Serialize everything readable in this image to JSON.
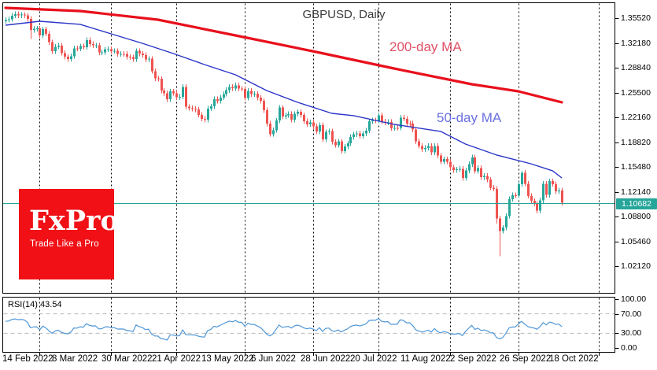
{
  "header": {
    "title": "GBPUSD, Daily"
  },
  "logo": {
    "brand": "FxPro",
    "tagline": "Trade Like a Pro",
    "bg_color": "#f01016"
  },
  "colors": {
    "candle_up": "#26a69a",
    "candle_down": "#ef5350",
    "ma200_line": "#e8101c",
    "ma200_label": "#e05065",
    "ma50_line": "#2b35c9",
    "ma50_label": "#6a6fe0",
    "current_price": "#26a69a",
    "rsi_line": "#4f97d7",
    "grid": "#000000",
    "rsi_level": "#bbbbbb",
    "border": "#000000"
  },
  "chart_data": {
    "type": "candlestick",
    "title": "GBPUSD, Daily",
    "legend": [
      "200-day MA",
      "50-day MA",
      "RSI(14)"
    ],
    "y_axis": {
      "labels": [
        "1.35520",
        "1.32180",
        "1.28840",
        "1.25500",
        "1.22160",
        "1.18820",
        "1.15480",
        "1.12140",
        "1.08800",
        "1.05460",
        "1.02120"
      ]
    },
    "x_axis": {
      "ticks": [
        {
          "idx": 0,
          "label": "14 Feb 2022"
        },
        {
          "idx": 16,
          "label": "8 Mar 2022"
        },
        {
          "idx": 32,
          "label": "30 Mar 2022"
        },
        {
          "idx": 48,
          "label": "21 Apr 2022"
        },
        {
          "idx": 64,
          "label": "13 May 2022"
        },
        {
          "idx": 80,
          "label": "6 Jun 2022"
        },
        {
          "idx": 96,
          "label": "28 Jun 2022"
        },
        {
          "idx": 112,
          "label": "20 Jul 2022"
        },
        {
          "idx": 128,
          "label": "11 Aug 2022"
        },
        {
          "idx": 144,
          "label": "2 Sep 2022"
        },
        {
          "idx": 160,
          "label": "26 Sep 2022"
        },
        {
          "idx": 176,
          "label": "18 Oct 2022"
        }
      ],
      "month_gridline_idx": [
        11,
        34,
        55,
        77,
        99,
        120,
        143,
        165,
        191
      ]
    },
    "bars": {
      "open_first": 1.3515,
      "default_wick": 0.0035,
      "closes": [
        1.353,
        1.3541,
        1.3588,
        1.361,
        1.3592,
        1.3602,
        1.359,
        1.3545,
        1.3395,
        1.3412,
        1.3415,
        1.3322,
        1.3405,
        1.3345,
        1.323,
        1.3108,
        1.317,
        1.3185,
        1.3085,
        1.3034,
        1.3003,
        1.3043,
        1.3149,
        1.3143,
        1.3178,
        1.3164,
        1.3259,
        1.3205,
        1.3187,
        1.3188,
        1.3091,
        1.3095,
        1.3134,
        1.3138,
        1.3111,
        1.3113,
        1.3073,
        1.3075,
        1.3073,
        1.3034,
        1.3029,
        1.3003,
        1.3114,
        1.3076,
        1.3057,
        1.2999,
        1.3007,
        1.284,
        1.2742,
        1.2738,
        1.2579,
        1.2543,
        1.2462,
        1.2567,
        1.2545,
        1.249,
        1.2497,
        1.2627,
        1.236,
        1.2343,
        1.2335,
        1.2324,
        1.2253,
        1.2199,
        1.2185,
        1.2337,
        1.2365,
        1.2465,
        1.2439,
        1.2485,
        1.2533,
        1.2585,
        1.2629,
        1.2609,
        1.265,
        1.2604,
        1.2602,
        1.2481,
        1.2574,
        1.2532,
        1.2535,
        1.2483,
        1.2441,
        1.2315,
        1.2134,
        1.1993,
        1.2045,
        1.2175,
        1.235,
        1.2229,
        1.2248,
        1.2262,
        1.2186,
        1.2266,
        1.2292,
        1.225,
        1.2168,
        1.2126,
        1.215,
        1.2097,
        1.2027,
        1.2115,
        1.1921,
        1.2021,
        1.2033,
        1.1889,
        1.1844,
        1.1894,
        1.1766,
        1.1826,
        1.1868,
        1.1954,
        1.199,
        1.2002,
        1.1967,
        1.2,
        1.204,
        1.2164,
        1.218,
        1.2174,
        1.2248,
        1.2163,
        1.2147,
        1.2158,
        1.2073,
        1.2078,
        1.2077,
        1.2216,
        1.2199,
        1.2135,
        1.2134,
        1.2054,
        1.1896,
        1.1833,
        1.1788,
        1.1808,
        1.1832,
        1.1745,
        1.1834,
        1.1704,
        1.1621,
        1.1655,
        1.1622,
        1.1544,
        1.1508,
        1.1518,
        1.1525,
        1.1402,
        1.1503,
        1.1588,
        1.1681,
        1.1495,
        1.1537,
        1.1413,
        1.143,
        1.138,
        1.1271,
        1.1255,
        1.0857,
        1.0688,
        1.0734,
        1.0889,
        1.1118,
        1.117,
        1.1166,
        1.1318,
        1.1473,
        1.1324,
        1.1161,
        1.1093,
        1.1056,
        1.0962,
        1.1101,
        1.1325,
        1.1174,
        1.1359,
        1.1319,
        1.1222,
        1.1234,
        1.10682
      ],
      "wick_overrides": {
        "8": {
          "l": 1.3273
        },
        "158": {
          "l": 1.079
        },
        "159": {
          "l": 1.035
        },
        "166": {
          "h": 1.1495
        }
      }
    },
    "ma200": {
      "label": "200-day MA",
      "points": [
        [
          0,
          1.3693
        ],
        [
          24,
          1.3651
        ],
        [
          49,
          1.3534
        ],
        [
          74,
          1.3322
        ],
        [
          100,
          1.3099
        ],
        [
          125,
          1.2877
        ],
        [
          150,
          1.2665
        ],
        [
          165,
          1.2569
        ],
        [
          179,
          1.2421
        ]
      ]
    },
    "ma50": {
      "label": "50-day MA",
      "points": [
        [
          0,
          1.346
        ],
        [
          11,
          1.3513
        ],
        [
          24,
          1.3471
        ],
        [
          34,
          1.3343
        ],
        [
          44,
          1.3216
        ],
        [
          54,
          1.3078
        ],
        [
          64,
          1.293
        ],
        [
          74,
          1.2792
        ],
        [
          84,
          1.258
        ],
        [
          94,
          1.2421
        ],
        [
          105,
          1.2272
        ],
        [
          112,
          1.2241
        ],
        [
          125,
          1.2124
        ],
        [
          140,
          1.2029
        ],
        [
          148,
          1.1859
        ],
        [
          158,
          1.1711
        ],
        [
          169,
          1.1594
        ],
        [
          176,
          1.1499
        ],
        [
          179,
          1.1403
        ]
      ]
    },
    "current_price": {
      "display": "1.10682",
      "value": 1.10682
    },
    "rsi": {
      "label": "RSI(14) 43.54",
      "period": 14,
      "current_value": 43.54,
      "seed_gain": 0.003,
      "seed_loss": 0.0025,
      "axis_labels": [
        {
          "v": 100,
          "label": "100.00"
        },
        {
          "v": 70,
          "label": "70.00"
        },
        {
          "v": 30,
          "label": "30.00"
        },
        {
          "v": 0,
          "label": "0.00"
        }
      ],
      "dashed_levels": [
        70,
        30
      ]
    }
  }
}
